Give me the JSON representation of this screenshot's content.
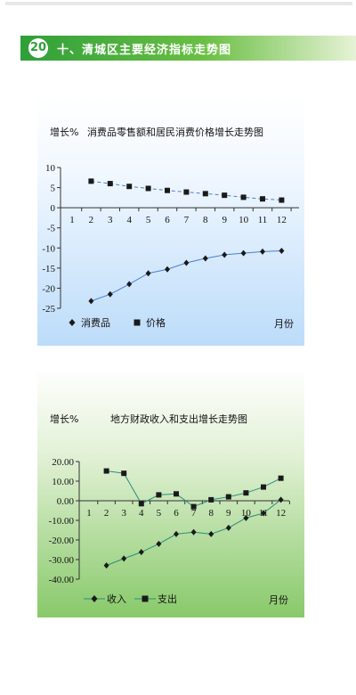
{
  "header": {
    "number": "20",
    "title": "十、清城区主要经济指标走势图"
  },
  "chart_data": [
    {
      "type": "line",
      "title": "消费品零售额和居民消费价格增长走势图",
      "ylabel": "增长%",
      "xlabel": "月份",
      "x": [
        1,
        2,
        3,
        4,
        5,
        6,
        7,
        8,
        9,
        10,
        11,
        12
      ],
      "ylim": [
        -25,
        10
      ],
      "yticks": [
        "10",
        "5",
        "0",
        "-5",
        "-10",
        "-15",
        "-20",
        "-25"
      ],
      "yticks_values": [
        10,
        5,
        0,
        -5,
        -10,
        -15,
        -20,
        -25
      ],
      "legend_position": "bottom",
      "series": [
        {
          "name": "消费品",
          "marker": "diamond",
          "color": "#1a1a1a",
          "line_color": "#4a7fd0",
          "line_style": "solid",
          "values": [
            null,
            -23.2,
            -21.5,
            -19,
            -16.3,
            -15.3,
            -13.7,
            -12.6,
            -11.7,
            -11.3,
            -10.9,
            -10.7
          ]
        },
        {
          "name": "价格",
          "marker": "square",
          "color": "#1a1a1a",
          "line_color": "#4a7fd0",
          "line_style": "dashed",
          "values": [
            null,
            6.6,
            6.0,
            5.3,
            4.8,
            4.3,
            3.9,
            3.5,
            3.1,
            2.6,
            2.2,
            1.9
          ]
        }
      ]
    },
    {
      "type": "line",
      "title": "地方财政收入和支出增长走势图",
      "ylabel": "增长%",
      "xlabel": "月份",
      "x": [
        1,
        2,
        3,
        4,
        5,
        6,
        7,
        8,
        9,
        10,
        11,
        12
      ],
      "ylim": [
        -40,
        20
      ],
      "yticks": [
        "20.00",
        "10.00",
        "0.00",
        "-10.00",
        "-20.00",
        "-30.00",
        "-40.00"
      ],
      "yticks_values": [
        20,
        10,
        0,
        -10,
        -20,
        -30,
        -40
      ],
      "legend_position": "bottom",
      "series": [
        {
          "name": "收入",
          "marker": "diamond",
          "color": "#1a1a1a",
          "line_color": "#2a8f7a",
          "line_style": "solid",
          "values": [
            null,
            -33,
            -29.5,
            -26.2,
            -22,
            -17,
            -16,
            -17,
            -13.8,
            -8.8,
            -6.3,
            0.5
          ]
        },
        {
          "name": "支出",
          "marker": "square",
          "color": "#1a1a1a",
          "line_color": "#2a8f7a",
          "line_style": "solid",
          "values": [
            null,
            15.2,
            14.0,
            -1.5,
            3.0,
            3.5,
            -3.0,
            0.5,
            2.0,
            4.0,
            7.0,
            11.5
          ]
        }
      ]
    }
  ]
}
